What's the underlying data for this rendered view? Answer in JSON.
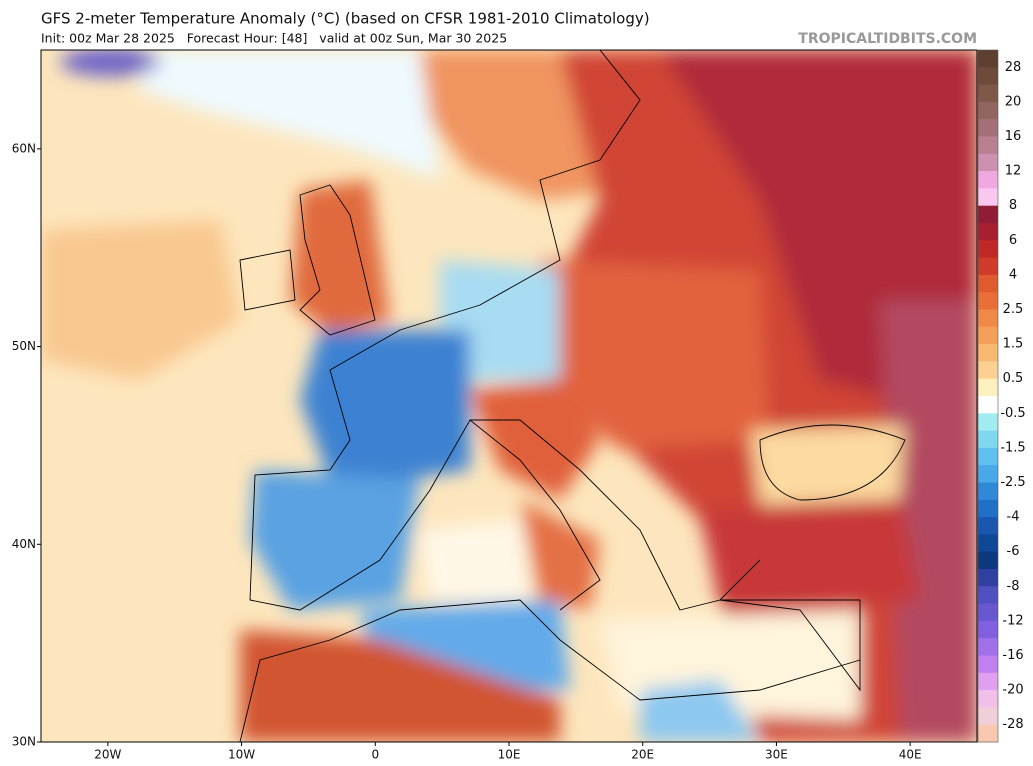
{
  "header": {
    "title": "GFS 2-meter Temperature Anomaly (°C) (based on CFSR 1981-2010 Climatology)",
    "subtitle": "Init: 00z Mar 28 2025   Forecast Hour: [48]   valid at 00z Sun, Mar 30 2025",
    "watermark": "TROPICALTIDBITS.COM"
  },
  "map": {
    "xlim": [
      -25,
      45
    ],
    "ylim": [
      30,
      65
    ],
    "xticks": [
      {
        "value": -20,
        "label": "20W"
      },
      {
        "value": -10,
        "label": "10W"
      },
      0,
      {
        "value": 10,
        "label": "10E"
      },
      {
        "value": 20,
        "label": "20E"
      },
      {
        "value": 30,
        "label": "30E"
      },
      {
        "value": 40,
        "label": "40E"
      }
    ],
    "yticks": [
      {
        "value": 60,
        "label": "60N"
      },
      {
        "value": 50,
        "label": "50N"
      },
      {
        "value": 40,
        "label": "40N"
      },
      {
        "value": 30,
        "label": "30N"
      }
    ]
  },
  "colorbar": {
    "labels": [
      28,
      20,
      16,
      12,
      8,
      6,
      4,
      2.5,
      1.5,
      0.5,
      -0.5,
      -1.5,
      -2.5,
      -4,
      -6,
      -8,
      -12,
      -16,
      -20,
      -28
    ],
    "colors": [
      "#5e4030",
      "#6e4a3a",
      "#805848",
      "#926560",
      "#a47078",
      "#b88090",
      "#cc90b0",
      "#f0a8e0",
      "#f8c8f0",
      "#901c38",
      "#a82030",
      "#c02828",
      "#d03a28",
      "#e05a30",
      "#e87038",
      "#f08848",
      "#f4a058",
      "#f8b870",
      "#fcd090",
      "#fff0c0",
      "#ffffff",
      "#a0ecf0",
      "#80d8f0",
      "#60c0f0",
      "#48a8e8",
      "#3088d8",
      "#2070c8",
      "#1858b0",
      "#104898",
      "#0c3880",
      "#3040a0",
      "#5050c0",
      "#6858d0",
      "#8060e0",
      "#a070e8",
      "#c080f0",
      "#e0a0f0",
      "#f0c0e8",
      "#f0d0d8",
      "#f8c8b0"
    ]
  }
}
